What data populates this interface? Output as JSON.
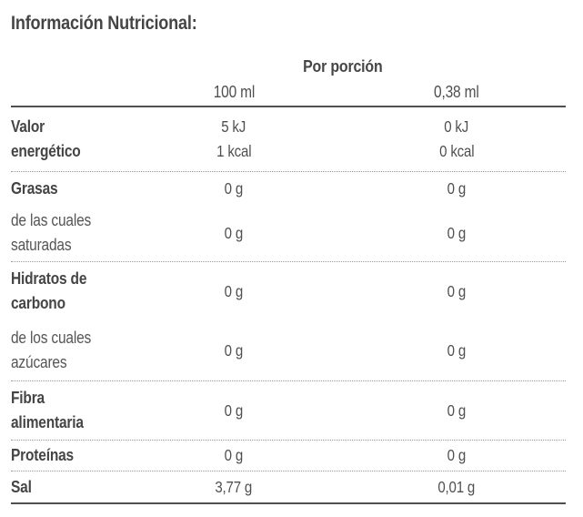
{
  "title": "Información Nutricional:",
  "colors": {
    "background": "#ffffff",
    "text_bold": "#454545",
    "text_regular": "#555555",
    "solid_rule": "#4f4f4f",
    "dotted_rule": "#9a9a9a"
  },
  "table": {
    "group_header": "Por porción",
    "columns": [
      "100 ml",
      "0,38 ml"
    ],
    "rows": [
      {
        "label": "Valor energético",
        "bold": true,
        "col1": [
          "5 kJ",
          "1 kcal"
        ],
        "col2": [
          "0 kJ",
          "0 kcal"
        ]
      },
      {
        "label": "Grasas",
        "bold": true,
        "col1": [
          "0 g"
        ],
        "col2": [
          "0 g"
        ]
      },
      {
        "label": "de las cuales saturadas",
        "bold": false,
        "col1": [
          "0 g"
        ],
        "col2": [
          "0 g"
        ]
      },
      {
        "label": "Hidratos de carbono",
        "bold": true,
        "col1": [
          "0 g"
        ],
        "col2": [
          "0 g"
        ]
      },
      {
        "label": "de los cuales azúcares",
        "bold": false,
        "col1": [
          "0 g"
        ],
        "col2": [
          "0 g"
        ]
      },
      {
        "label": "Fibra alimentaria",
        "bold": true,
        "col1": [
          "0 g"
        ],
        "col2": [
          "0 g"
        ]
      },
      {
        "label": "Proteínas",
        "bold": true,
        "col1": [
          "0 g"
        ],
        "col2": [
          "0 g"
        ]
      },
      {
        "label": "Sal",
        "bold": true,
        "col1": [
          "3,77 g"
        ],
        "col2": [
          "0,01 g"
        ]
      }
    ]
  }
}
